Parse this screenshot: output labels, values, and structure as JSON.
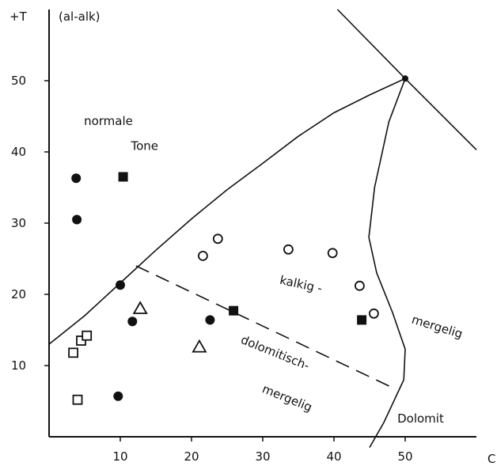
{
  "chart_data": {
    "type": "scatter",
    "title": "",
    "xlabel": "C",
    "ylabel": "+T",
    "ylabel_sub": "(al-alk)",
    "xlim": [
      0,
      60
    ],
    "ylim": [
      0,
      60
    ],
    "x_ticks": [
      "10",
      "20",
      "30",
      "40",
      "50"
    ],
    "y_ticks": [
      "10",
      "20",
      "30",
      "40",
      "50"
    ],
    "grid": false,
    "legend": "none",
    "series": [
      {
        "marker": "filled-circle",
        "points": [
          [
            3.8,
            36.3
          ],
          [
            3.9,
            30.5
          ],
          [
            10.0,
            21.3
          ],
          [
            11.7,
            16.2
          ],
          [
            22.6,
            16.4
          ],
          [
            9.7,
            5.7
          ]
        ]
      },
      {
        "marker": "filled-square",
        "points": [
          [
            10.4,
            36.5
          ],
          [
            25.9,
            17.7
          ],
          [
            43.9,
            16.4
          ]
        ]
      },
      {
        "marker": "open-circle",
        "points": [
          [
            21.6,
            25.4
          ],
          [
            23.7,
            27.8
          ],
          [
            33.6,
            26.3
          ],
          [
            39.8,
            25.8
          ],
          [
            43.6,
            21.2
          ],
          [
            45.6,
            17.3
          ]
        ]
      },
      {
        "marker": "open-square",
        "points": [
          [
            3.4,
            11.8
          ],
          [
            4.5,
            13.5
          ],
          [
            5.3,
            14.2
          ],
          [
            4.0,
            5.2
          ]
        ]
      },
      {
        "marker": "open-triangle",
        "points": [
          [
            12.8,
            18.0
          ],
          [
            21.1,
            12.6
          ]
        ]
      }
    ],
    "boundaries": [
      {
        "style": "solid",
        "points": [
          [
            0,
            13.0
          ],
          [
            5,
            17.0
          ],
          [
            10,
            21.6
          ],
          [
            15,
            26.2
          ],
          [
            20,
            30.6
          ],
          [
            25,
            34.7
          ],
          [
            30,
            38.4
          ],
          [
            35,
            42.2
          ],
          [
            40,
            45.5
          ],
          [
            45,
            48.0
          ],
          [
            50.0,
            50.3
          ]
        ]
      },
      {
        "style": "solid",
        "points": [
          [
            40.5,
            60.0
          ],
          [
            50.0,
            50.3
          ],
          [
            60.0,
            40.3
          ]
        ]
      },
      {
        "style": "solid",
        "points": [
          [
            50.0,
            50.3
          ],
          [
            47.7,
            44.2
          ],
          [
            45.7,
            35.0
          ],
          [
            44.9,
            28.0
          ],
          [
            46.0,
            23.0
          ],
          [
            48.2,
            17.5
          ],
          [
            50.0,
            12.3
          ],
          [
            49.8,
            8.0
          ],
          [
            47.0,
            2.0
          ],
          [
            45.0,
            -1.5
          ]
        ]
      },
      {
        "style": "dashed",
        "points": [
          [
            12.2,
            24.0
          ],
          [
            48.0,
            7.0
          ]
        ]
      }
    ],
    "annotations": [
      {
        "text": "normale",
        "x": 4.9,
        "y": 43.8
      },
      {
        "text": "Tone",
        "x": 11.5,
        "y": 40.3
      },
      {
        "text": "kalkig -",
        "x": 32.3,
        "y": 21.5,
        "rotate": 12
      },
      {
        "text": "dolomitisch-",
        "x": 26.8,
        "y": 13.2,
        "rotate": 22
      },
      {
        "text": "mergelig",
        "x": 29.8,
        "y": 6.3,
        "rotate": 22
      },
      {
        "text": "mergelig",
        "x": 50.8,
        "y": 16.0,
        "rotate": 17
      },
      {
        "text": "Dolomit",
        "x": 48.9,
        "y": 2.0
      }
    ]
  }
}
